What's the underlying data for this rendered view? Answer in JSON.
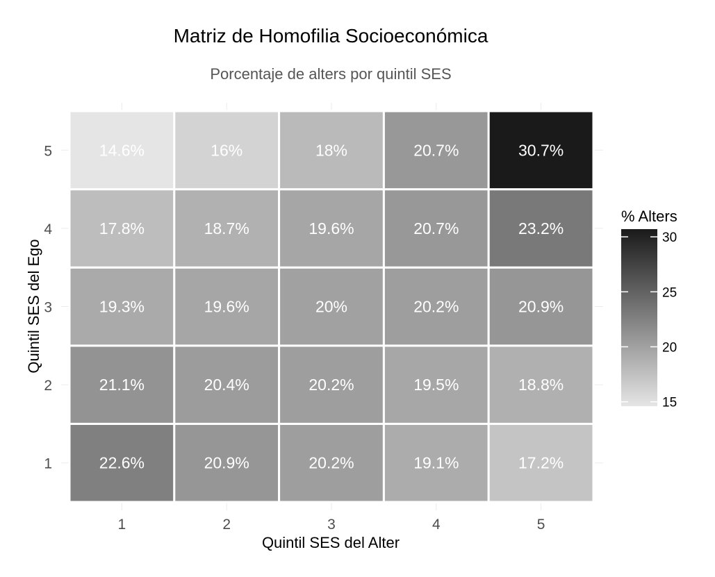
{
  "chart_data": {
    "type": "heatmap",
    "title": "Matriz de Homofilia Socioeconómica",
    "subtitle": "Porcentaje de alters por quintil SES",
    "xlabel": "Quintil SES del Alter",
    "ylabel": "Quintil SES del Ego",
    "x_categories": [
      "1",
      "2",
      "3",
      "4",
      "5"
    ],
    "y_categories": [
      "1",
      "2",
      "3",
      "4",
      "5"
    ],
    "values_by_ego_row": [
      {
        "ego": "1",
        "values": [
          22.6,
          20.9,
          20.2,
          19.1,
          17.2
        ],
        "labels": [
          "22.6%",
          "20.9%",
          "20.2%",
          "19.1%",
          "17.2%"
        ]
      },
      {
        "ego": "2",
        "values": [
          21.1,
          20.4,
          20.2,
          19.5,
          18.8
        ],
        "labels": [
          "21.1%",
          "20.4%",
          "20.2%",
          "19.5%",
          "18.8%"
        ]
      },
      {
        "ego": "3",
        "values": [
          19.3,
          19.6,
          20.0,
          20.2,
          20.9
        ],
        "labels": [
          "19.3%",
          "19.6%",
          "20%",
          "20.2%",
          "20.9%"
        ]
      },
      {
        "ego": "4",
        "values": [
          17.8,
          18.7,
          19.6,
          20.7,
          23.2
        ],
        "labels": [
          "17.8%",
          "18.7%",
          "19.6%",
          "20.7%",
          "23.2%"
        ]
      },
      {
        "ego": "5",
        "values": [
          14.6,
          16.0,
          18.0,
          20.7,
          30.7
        ],
        "labels": [
          "14.6%",
          "16%",
          "18%",
          "20.7%",
          "30.7%"
        ]
      }
    ],
    "legend": {
      "title": "% Alters",
      "position": "right",
      "ticks": [
        15,
        20,
        25,
        30
      ],
      "tick_labels": [
        "15",
        "20",
        "25",
        "30"
      ],
      "range": [
        14.6,
        30.7
      ],
      "low_color": "#e5e5e5",
      "high_color": "#1a1a1a"
    },
    "grid": true
  }
}
